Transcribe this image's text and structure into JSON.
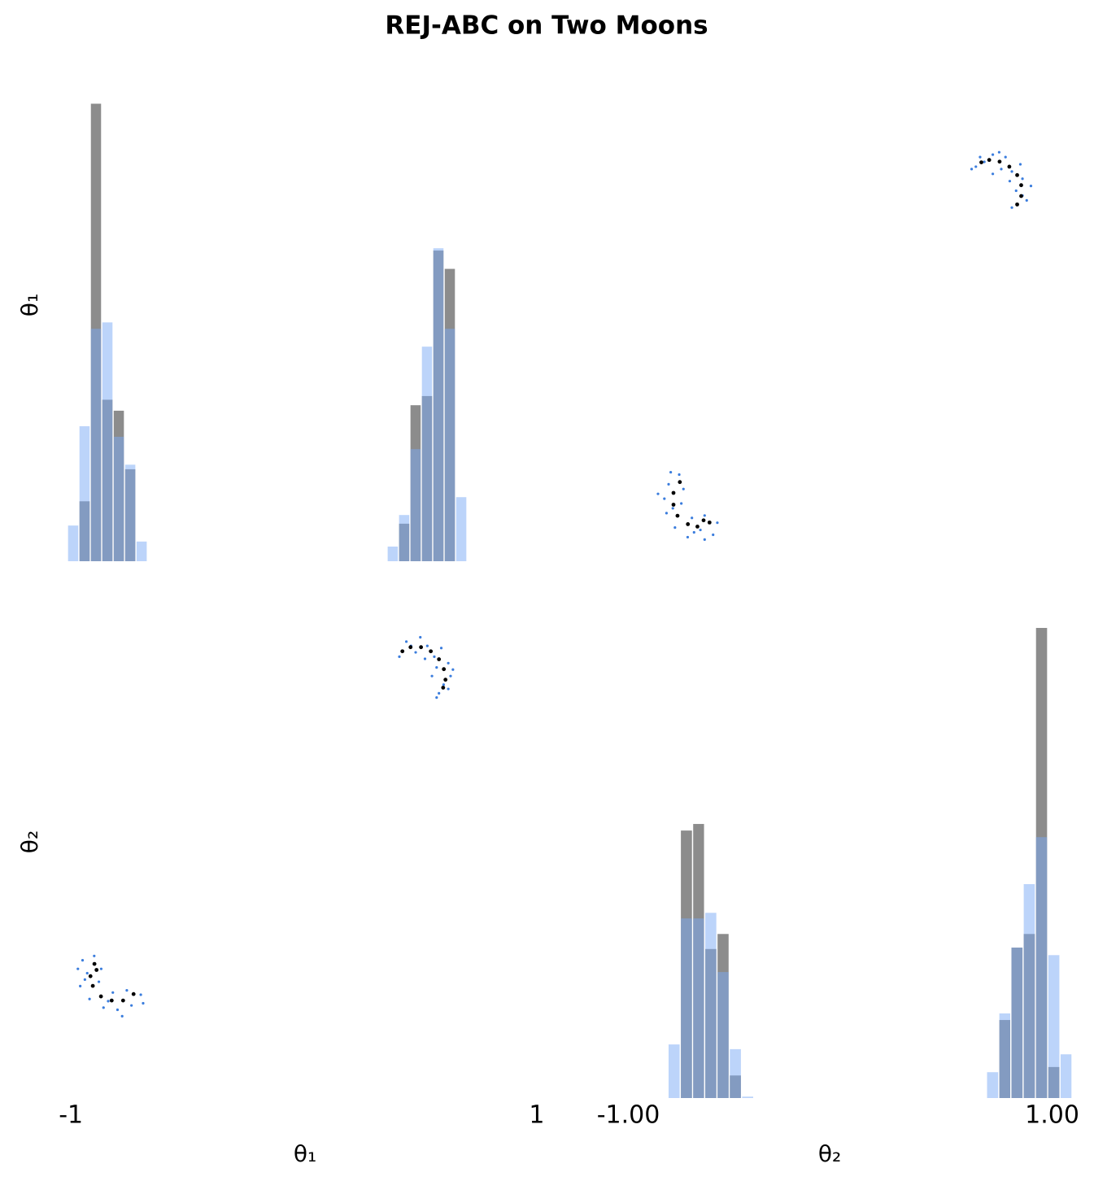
{
  "chart_data": {
    "type": "pairplot",
    "title": "REJ-ABC on Two Moons",
    "variables": [
      {
        "label": "θ₁",
        "lim": [
          -1.06,
          1.07
        ],
        "ticks": [
          -1,
          1
        ],
        "hist": {
          "ylim": [
            0,
            11.2
          ],
          "bins": [
            -1.014,
            -0.965,
            -0.916,
            -0.867,
            -0.818,
            -0.769,
            -0.72,
            -0.671,
            -0.622,
            -0.573,
            -0.524,
            -0.475,
            -0.426,
            -0.377,
            -0.328,
            -0.279,
            -0.23,
            -0.181,
            -0.132,
            -0.083,
            -0.034,
            0.015,
            0.064,
            0.113,
            0.162,
            0.211,
            0.26,
            0.309,
            0.358,
            0.407,
            0.456,
            0.505,
            0.554,
            0.603,
            0.652,
            0.701
          ],
          "series": [
            {
              "color": "#8c8c8c",
              "values": [
                0,
                1.31,
                10,
                3.53,
                3.29,
                2.01,
                0,
                0,
                0,
                0,
                0,
                0,
                0,
                0,
                0,
                0,
                0,
                0,
                0,
                0,
                0,
                0,
                0,
                0,
                0,
                0,
                0,
                0,
                0,
                0.82,
                3.41,
                3.61,
                6.79,
                6.39,
                0
              ]
            },
            {
              "color": "#7aaaf5",
              "values": [
                0.78,
                2.95,
                5.08,
                5.22,
                2.72,
                2.11,
                0.43,
                0,
                0,
                0,
                0,
                0,
                0,
                0,
                0,
                0,
                0,
                0,
                0,
                0,
                0,
                0,
                0,
                0,
                0,
                0,
                0,
                0,
                0.32,
                1.01,
                2.45,
                4.69,
                6.84,
                5.08,
                1.4
              ]
            }
          ]
        }
      },
      {
        "label": "θ₂",
        "lim": [
          -1.24,
          1.14
        ],
        "ticks": [
          {
            "value": -1,
            "label": "-1.00"
          },
          {
            "value": 1,
            "label": "1.00"
          }
        ],
        "hist": {
          "ylim": [
            0,
            10.9
          ],
          "bins": [
            -0.812,
            -0.754,
            -0.696,
            -0.639,
            -0.581,
            -0.523,
            -0.465,
            -0.407,
            -0.35,
            -0.292,
            -0.234,
            -0.176,
            -0.118,
            -0.061,
            -0.003,
            0.055,
            0.113,
            0.171,
            0.228,
            0.286,
            0.344,
            0.402,
            0.46,
            0.517,
            0.575,
            0.633,
            0.691,
            0.749,
            0.806,
            0.864,
            0.922,
            0.98,
            1.038,
            1.095
          ],
          "series": [
            {
              "color": "#8c8c8c",
              "values": [
                0,
                5.69,
                5.83,
                3.17,
                3.49,
                0.48,
                0,
                0,
                0,
                0,
                0,
                0,
                0,
                0,
                0,
                0,
                0,
                0,
                0,
                0,
                0,
                0,
                0,
                0,
                0,
                0,
                0,
                1.66,
                3.2,
                3.49,
                10,
                0.66,
                0
              ]
            },
            {
              "color": "#7aaaf5",
              "values": [
                1.14,
                3.82,
                3.82,
                3.94,
                2.68,
                1.04,
                0.03,
                0,
                0,
                0,
                0,
                0,
                0,
                0,
                0,
                0,
                0,
                0,
                0,
                0,
                0,
                0,
                0,
                0,
                0,
                0,
                0.55,
                1.8,
                3.2,
                4.55,
                5.55,
                3.04,
                0.93
              ]
            }
          ]
        }
      }
    ],
    "samples": [
      {
        "color": "#3b7ddd",
        "theta1": [
          -0.95,
          -0.93,
          -0.96,
          -0.9,
          -0.88,
          -0.92,
          -0.86,
          -0.8,
          -0.74,
          -0.7,
          -0.82,
          -0.76,
          -0.94,
          -0.87,
          -0.84,
          -0.69,
          -0.78,
          -0.97,
          0.41,
          0.44,
          0.48,
          0.5,
          0.53,
          0.56,
          0.59,
          0.62,
          0.57,
          0.63,
          0.6,
          0.58,
          0.62,
          0.55,
          0.46,
          0.52,
          0.64,
          0.57
        ],
        "theta2": [
          -0.6,
          -0.66,
          -0.72,
          -0.58,
          -0.7,
          -0.78,
          -0.82,
          -0.83,
          -0.81,
          -0.76,
          -0.75,
          -0.74,
          -0.69,
          -0.64,
          -0.79,
          -0.8,
          -0.86,
          -0.64,
          0.81,
          0.88,
          0.83,
          0.9,
          0.86,
          0.81,
          0.85,
          0.78,
          0.76,
          0.72,
          0.68,
          0.64,
          0.66,
          0.72,
          0.86,
          0.8,
          0.75,
          0.62
        ]
      },
      {
        "color": "#000000",
        "theta1": [
          -0.899,
          -0.916,
          -0.906,
          -0.871,
          -0.825,
          -0.776,
          -0.731,
          -0.89,
          0.423,
          0.458,
          0.503,
          0.545,
          0.58,
          0.601,
          0.608,
          0.598
        ],
        "theta2": [
          -0.617,
          -0.674,
          -0.719,
          -0.768,
          -0.787,
          -0.787,
          -0.757,
          -0.645,
          0.835,
          0.854,
          0.854,
          0.835,
          0.798,
          0.752,
          0.703,
          0.666
        ]
      }
    ]
  }
}
